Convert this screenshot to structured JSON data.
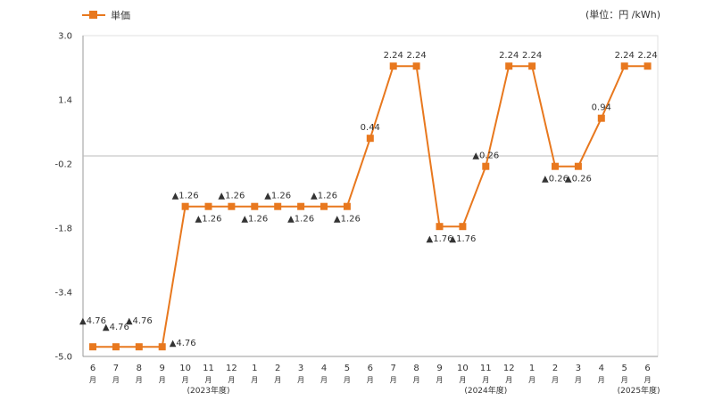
{
  "legend": {
    "label": "単価"
  },
  "unit_label": "(単位：円 /kWh)",
  "colors": {
    "series": "#e8781e",
    "axis": "#999999",
    "zero_line": "#bbbbbb",
    "grid": "#e0e0e0",
    "text": "#333333"
  },
  "chart_data": {
    "type": "line",
    "title": "",
    "xlabel": "",
    "ylabel": "",
    "ylim": [
      -5.0,
      3.0
    ],
    "yticks": [
      3.0,
      1.4,
      -0.2,
      -1.8,
      -3.4,
      -5.0
    ],
    "ytick_labels": [
      "3.0",
      "1.4",
      "-0.2",
      "-1.8",
      "-3.4",
      "-5.0"
    ],
    "grid": true,
    "month_char": "月",
    "categories": [
      "6",
      "7",
      "8",
      "9",
      "10",
      "11",
      "12",
      "1",
      "2",
      "3",
      "4",
      "5",
      "6",
      "7",
      "8",
      "9",
      "10",
      "11",
      "12",
      "1",
      "2",
      "3",
      "4",
      "5",
      "6"
    ],
    "series": [
      {
        "name": "単価",
        "values": [
          -4.76,
          -4.76,
          -4.76,
          -4.76,
          -1.26,
          -1.26,
          -1.26,
          -1.26,
          -1.26,
          -1.26,
          -1.26,
          -1.26,
          0.44,
          2.24,
          2.24,
          -1.76,
          -1.76,
          -0.26,
          2.24,
          2.24,
          -0.26,
          -0.26,
          0.94,
          2.24,
          2.24
        ],
        "data_labels": [
          "▲4.76",
          "▲4.76",
          "▲4.76",
          "▲4.76",
          "▲1.26",
          "▲1.26",
          "▲1.26",
          "▲1.26",
          "▲1.26",
          "▲1.26",
          "▲1.26",
          "▲1.26",
          "0.44",
          "2.24",
          "2.24",
          "▲1.76",
          "▲1.76",
          "▲0.26",
          "2.24",
          "2.24",
          "▲0.26",
          "▲0.26",
          "0.94",
          "2.24",
          "2.24"
        ],
        "label_positions": [
          "above",
          "above",
          "above",
          "right",
          "above",
          "below",
          "above",
          "below",
          "above",
          "below",
          "above",
          "below",
          "above",
          "above",
          "above",
          "below",
          "below",
          "above",
          "above",
          "above",
          "below",
          "below",
          "above",
          "above",
          "above"
        ]
      }
    ],
    "fiscal_year_labels": [
      {
        "label": "(2023年度)",
        "category_index": 5
      },
      {
        "label": "(2024年度)",
        "category_index": 17
      },
      {
        "label": "(2025年度)",
        "category_index": 24
      }
    ]
  }
}
